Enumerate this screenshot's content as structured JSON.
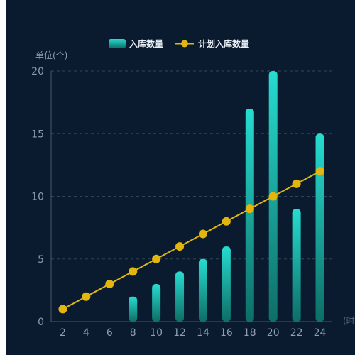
{
  "chart_data": {
    "type": "bar",
    "categories": [
      "2",
      "4",
      "6",
      "8",
      "10",
      "12",
      "14",
      "16",
      "18",
      "20",
      "22",
      "24"
    ],
    "series": [
      {
        "name": "入库数量",
        "type": "bar",
        "values": [
          null,
          null,
          null,
          2,
          3,
          4,
          5,
          6,
          17,
          20,
          9,
          15
        ]
      },
      {
        "name": "计划入库数量",
        "type": "line",
        "values": [
          1,
          2,
          3,
          4,
          5,
          6,
          7,
          8,
          9,
          10,
          11,
          12
        ]
      }
    ],
    "ylabel": "单位(个)",
    "xlabel": "(时",
    "ylim": [
      0,
      20
    ],
    "yticks": [
      "0",
      "5",
      "10",
      "15",
      "20"
    ],
    "legend": "top-center",
    "grid": true,
    "colors": {
      "background": "#0b1b2f",
      "bar_top": "#27dcd0",
      "bar_bottom": "#0d6e66",
      "line": "#e3b60f",
      "grid": "#2f4458",
      "axis": "#4a5a6a",
      "tick_text": "#8e9eae",
      "legend_text": "#e8eef5"
    }
  }
}
